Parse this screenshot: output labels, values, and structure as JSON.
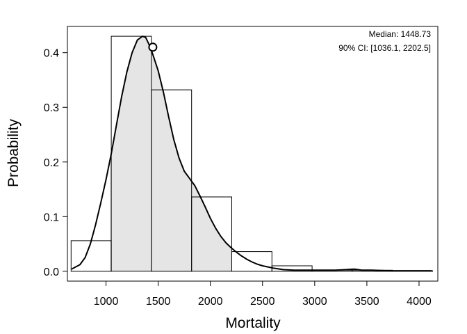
{
  "chart_data": {
    "type": "histogram",
    "xlabel": "Mortality",
    "ylabel": "Probability",
    "xlim": [
      630,
      4180
    ],
    "ylim": [
      -0.018,
      0.448
    ],
    "x_ticks": [
      1000,
      1500,
      2000,
      2500,
      3000,
      3500,
      4000
    ],
    "y_ticks": [
      0.0,
      0.1,
      0.2,
      0.3,
      0.4
    ],
    "y_tick_labels": [
      "0.0",
      "0.1",
      "0.2",
      "0.3",
      "0.4"
    ],
    "bins": [
      {
        "start": 665,
        "end": 1050,
        "value": 0.056
      },
      {
        "start": 1050,
        "end": 1435,
        "value": 0.43
      },
      {
        "start": 1435,
        "end": 1820,
        "value": 0.332
      },
      {
        "start": 1820,
        "end": 2205,
        "value": 0.136
      },
      {
        "start": 2205,
        "end": 2590,
        "value": 0.036
      },
      {
        "start": 2590,
        "end": 2975,
        "value": 0.01
      },
      {
        "start": 2975,
        "end": 3360,
        "value": 0.002
      },
      {
        "start": 3360,
        "end": 3745,
        "value": 0.002
      },
      {
        "start": 3745,
        "end": 4130,
        "value": 0.001
      }
    ],
    "density_curve": {
      "x": [
        670,
        750,
        800,
        850,
        900,
        950,
        1000,
        1050,
        1100,
        1150,
        1200,
        1250,
        1300,
        1350,
        1380,
        1400,
        1420,
        1450,
        1500,
        1550,
        1600,
        1650,
        1700,
        1750,
        1800,
        1850,
        1900,
        1950,
        2000,
        2050,
        2100,
        2150,
        2200,
        2250,
        2300,
        2350,
        2400,
        2450,
        2500,
        2600,
        2700,
        2800,
        2900,
        3000,
        3100,
        3200,
        3300,
        3380,
        3450,
        3550,
        3700,
        3900,
        4000,
        4120
      ],
      "y": [
        0.004,
        0.012,
        0.025,
        0.05,
        0.085,
        0.125,
        0.168,
        0.215,
        0.268,
        0.32,
        0.365,
        0.4,
        0.423,
        0.43,
        0.428,
        0.42,
        0.412,
        0.396,
        0.367,
        0.328,
        0.283,
        0.241,
        0.207,
        0.183,
        0.17,
        0.157,
        0.138,
        0.118,
        0.097,
        0.079,
        0.064,
        0.052,
        0.043,
        0.035,
        0.028,
        0.022,
        0.017,
        0.013,
        0.01,
        0.006,
        0.003,
        0.002,
        0.002,
        0.002,
        0.002,
        0.002,
        0.003,
        0.004,
        0.002,
        0.002,
        0.001,
        0.001,
        0.001,
        0.001
      ]
    },
    "ci_shade": {
      "from": 1036.1,
      "to": 2202.5,
      "color": "#e5e5e5"
    },
    "median_point": {
      "x": 1448.73,
      "y": 0.41
    },
    "annotations": [
      "Median: 1448.73",
      "90% CI: [1036.1, 2202.5]"
    ]
  }
}
